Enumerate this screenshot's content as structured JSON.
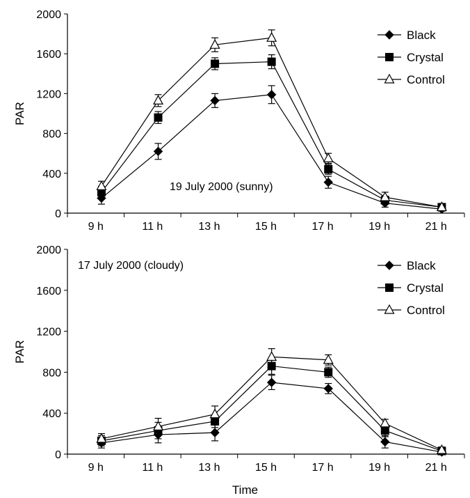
{
  "chart_data": [
    {
      "type": "line",
      "annotation": "19 July 2000 (sunny)",
      "xlabel": "",
      "ylabel": "PAR",
      "categories": [
        "9 h",
        "11 h",
        "13 h",
        "15 h",
        "17 h",
        "19 h",
        "21 h"
      ],
      "ylim": [
        0,
        2000
      ],
      "yticks": [
        0,
        400,
        800,
        1200,
        1600,
        2000
      ],
      "legend_position": "top-right",
      "grid": false,
      "series": [
        {
          "name": "Black",
          "marker": "diamond",
          "x": [
            9.2,
            11.2,
            13.2,
            15.2,
            17.2,
            19.2,
            21.2
          ],
          "values": [
            150,
            620,
            1130,
            1190,
            310,
            100,
            40
          ],
          "errors": [
            60,
            80,
            70,
            90,
            60,
            40,
            20
          ]
        },
        {
          "name": "Crystal",
          "marker": "square",
          "x": [
            9.2,
            11.2,
            13.2,
            15.2,
            17.2,
            19.2,
            21.2
          ],
          "values": [
            210,
            960,
            1500,
            1520,
            440,
            130,
            60
          ],
          "errors": [
            60,
            60,
            60,
            70,
            50,
            40,
            20
          ]
        },
        {
          "name": "Control",
          "marker": "triangle",
          "x": [
            9.2,
            11.2,
            13.2,
            15.2,
            17.2,
            19.2,
            21.2
          ],
          "values": [
            270,
            1130,
            1690,
            1760,
            550,
            160,
            60
          ],
          "errors": [
            50,
            60,
            70,
            80,
            50,
            50,
            20
          ]
        }
      ]
    },
    {
      "type": "line",
      "annotation": "17 July 2000 (cloudy)",
      "xlabel": "Time",
      "ylabel": "PAR",
      "categories": [
        "9 h",
        "11 h",
        "13 h",
        "15 h",
        "17 h",
        "19 h",
        "21 h"
      ],
      "ylim": [
        0,
        2000
      ],
      "yticks": [
        0,
        400,
        800,
        1200,
        1600,
        2000
      ],
      "legend_position": "top-right",
      "grid": false,
      "series": [
        {
          "name": "Black",
          "marker": "diamond",
          "x": [
            9.2,
            11.2,
            13.2,
            15.2,
            17.2,
            19.2,
            21.2
          ],
          "values": [
            110,
            190,
            210,
            700,
            640,
            120,
            20
          ],
          "errors": [
            50,
            80,
            80,
            70,
            50,
            60,
            20
          ]
        },
        {
          "name": "Crystal",
          "marker": "square",
          "x": [
            9.2,
            11.2,
            13.2,
            15.2,
            17.2,
            19.2,
            21.2
          ],
          "values": [
            130,
            230,
            320,
            860,
            800,
            230,
            30
          ],
          "errors": [
            50,
            80,
            60,
            80,
            50,
            60,
            30
          ]
        },
        {
          "name": "Control",
          "marker": "triangle",
          "x": [
            9.2,
            11.2,
            13.2,
            15.2,
            17.2,
            19.2,
            21.2
          ],
          "values": [
            150,
            270,
            390,
            950,
            920,
            300,
            40
          ],
          "errors": [
            50,
            80,
            80,
            80,
            50,
            40,
            30
          ]
        }
      ]
    }
  ]
}
